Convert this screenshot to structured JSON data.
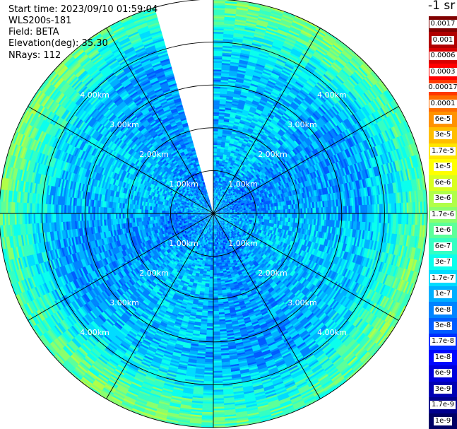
{
  "info": {
    "start_time": "Start time: 2023/09/10 01:59:04",
    "device": "WLS200s-181",
    "field": "Field: BETA",
    "elevation": "Elevation(deg): 35.30",
    "nrays": "NRays: 112"
  },
  "colorbar": {
    "unit_label": "-1 sr",
    "ticks": [
      "0.0017",
      "0.001",
      "0.0006",
      "0.0003",
      "0.00017",
      "0.0001",
      "6e-5",
      "3e-5",
      "1.7e-5",
      "1e-5",
      "6e-6",
      "3e-6",
      "1.7e-6",
      "1e-6",
      "6e-7",
      "3e-7",
      "1.7e-7",
      "1e-7",
      "6e-8",
      "3e-8",
      "1.7e-8",
      "1e-8",
      "6e-9",
      "3e-9",
      "1.7e-9",
      "1e-9"
    ],
    "colors": [
      "#800000",
      "#b00000",
      "#d80000",
      "#ff0000",
      "#ff3a00",
      "#ff6e00",
      "#ff9200",
      "#ffbe00",
      "#ffe600",
      "#ffff00",
      "#d9ff1f",
      "#b0ff48",
      "#8aff6d",
      "#5cff9a",
      "#34ffc3",
      "#0affed",
      "#00dcff",
      "#00b0ff",
      "#0084ff",
      "#005cff",
      "#0030ff",
      "#0008ff",
      "#0000dc",
      "#0000b4",
      "#00008c",
      "#000064"
    ]
  },
  "chart_data": {
    "type": "heatmap",
    "projection": "polar (PPI scan)",
    "field": "BETA",
    "elevation_deg": 35.3,
    "nrays": 112,
    "range_rings_km": [
      1.0,
      2.0,
      3.0,
      4.0
    ],
    "ring_labels": [
      "1.00km",
      "2.00km",
      "3.00km",
      "4.00km"
    ],
    "max_range_km": 5.0,
    "missing_sector_deg": [
      -15,
      0
    ],
    "radial_profile": {
      "range_km": [
        0.0,
        0.8,
        1.5,
        2.5,
        3.5,
        4.2,
        4.8
      ],
      "beta_sr_inv": [
        1e-07,
        6e-08,
        1e-07,
        1e-07,
        1e-07,
        3e-07,
        1e-06
      ]
    }
  }
}
